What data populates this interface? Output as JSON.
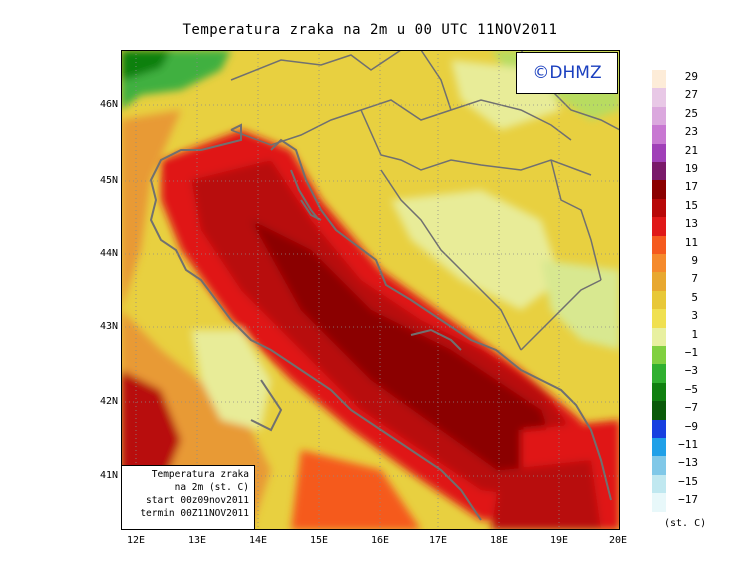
{
  "title": "Temperatura zraka na 2m u 00 UTC 11NOV2011",
  "logo": "©DHMZ",
  "lat_labels": [
    "46N",
    "45N",
    "44N",
    "43N",
    "42N",
    "41N"
  ],
  "lon_labels": [
    "12E",
    "13E",
    "14E",
    "15E",
    "16E",
    "17E",
    "18E",
    "19E",
    "20E"
  ],
  "info_box": {
    "line1": "Temperatura zraka",
    "line2": "na 2m (st. C)",
    "line3": "start 00z09nov2011",
    "line4": "termin 00Z11NOV2011"
  },
  "legend": {
    "labels": [
      "29",
      "27",
      "25",
      "23",
      "21",
      "19",
      "17",
      "15",
      "13",
      "11",
      "9",
      "7",
      "5",
      "3",
      "1",
      "−1",
      "−3",
      "−5",
      "−7",
      "−9",
      "−11",
      "−13",
      "−15",
      "−17"
    ],
    "colors": [
      "#fdecd8",
      "#e8c8e6",
      "#dba8de",
      "#c878d2",
      "#a040b8",
      "#7a1a6a",
      "#8b0000",
      "#b80808",
      "#e01818",
      "#f55a1e",
      "#f58a2c",
      "#e8a830",
      "#e8c838",
      "#f0e050",
      "#e8f0a0",
      "#80d040",
      "#30b030",
      "#108010",
      "#0a5a0a",
      "#1840e0",
      "#20a0e8",
      "#80c8e8",
      "#c0e8f0",
      "#e8f8fa"
    ],
    "units": "(st. C)"
  },
  "colors": {
    "sea_warm": "#8b0000",
    "sea_mid": "#c81010",
    "coast_warm": "#e83a1a",
    "land_orange": "#e89a34",
    "land_yellow": "#e8d040",
    "land_light": "#e8ec98",
    "alps_green": "#40b040",
    "boundaries": "#707070"
  }
}
